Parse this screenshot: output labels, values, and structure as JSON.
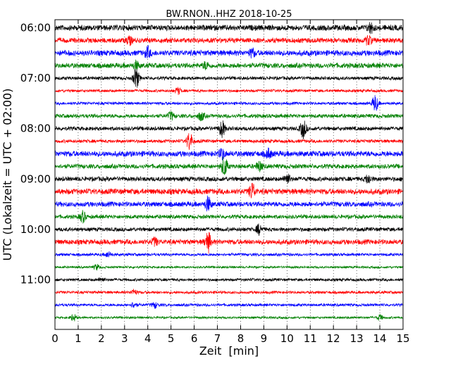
{
  "chart_data": {
    "type": "line",
    "title": "BW.RNON..HHZ 2018-10-25",
    "xlabel": "Zeit  [min]",
    "ylabel": "UTC (Lokalzeit = UTC + 02:00)",
    "xlim": [
      0,
      15
    ],
    "x_ticks": [
      0,
      1,
      2,
      3,
      4,
      5,
      6,
      7,
      8,
      9,
      10,
      11,
      12,
      13,
      14,
      15
    ],
    "x_tick_labels": [
      "0",
      "1",
      "2",
      "3",
      "4",
      "5",
      "6",
      "7",
      "8",
      "9",
      "10",
      "11",
      "12",
      "13",
      "14",
      "15"
    ],
    "y_ticks": [
      0,
      4,
      8,
      12,
      16,
      20
    ],
    "y_tick_labels": [
      "06:00",
      "07:00",
      "08:00",
      "09:00",
      "10:00",
      "11:00"
    ],
    "trace_count": 24,
    "trace_interval_min": 15,
    "grid": "vertical dotted at each minute",
    "colors": [
      "#000000",
      "#ff0000",
      "#0000ff",
      "#008000"
    ],
    "traces": [
      {
        "start": "06:00",
        "amplitude": 0.5,
        "events": [
          [
            13.6,
            0.9
          ]
        ]
      },
      {
        "start": "06:15",
        "amplitude": 0.45,
        "events": [
          [
            3.2,
            0.7
          ],
          [
            13.5,
            0.8
          ]
        ]
      },
      {
        "start": "06:30",
        "amplitude": 0.5,
        "events": [
          [
            4.0,
            0.9
          ],
          [
            8.5,
            0.7
          ]
        ]
      },
      {
        "start": "06:45",
        "amplitude": 0.45,
        "events": [
          [
            3.5,
            0.7
          ],
          [
            6.5,
            0.6
          ]
        ]
      },
      {
        "start": "07:00",
        "amplitude": 0.3,
        "events": [
          [
            3.5,
            1.9
          ]
        ]
      },
      {
        "start": "07:15",
        "amplitude": 0.25,
        "events": [
          [
            5.3,
            0.6
          ]
        ]
      },
      {
        "start": "07:30",
        "amplitude": 0.25,
        "events": [
          [
            13.8,
            1.6
          ]
        ]
      },
      {
        "start": "07:45",
        "amplitude": 0.35,
        "events": [
          [
            5.0,
            0.7
          ],
          [
            6.3,
            0.8
          ]
        ]
      },
      {
        "start": "08:00",
        "amplitude": 0.35,
        "events": [
          [
            7.2,
            1.5
          ],
          [
            10.7,
            1.7
          ]
        ]
      },
      {
        "start": "08:15",
        "amplitude": 0.3,
        "events": [
          [
            5.8,
            1.7
          ]
        ]
      },
      {
        "start": "08:30",
        "amplitude": 0.5,
        "events": [
          [
            7.2,
            0.9
          ],
          [
            9.2,
            0.8
          ]
        ]
      },
      {
        "start": "08:45",
        "amplitude": 0.4,
        "events": [
          [
            7.3,
            1.9
          ],
          [
            8.8,
            0.9
          ]
        ]
      },
      {
        "start": "09:00",
        "amplitude": 0.4,
        "events": [
          [
            10.0,
            1.0
          ],
          [
            13.5,
            0.8
          ]
        ]
      },
      {
        "start": "09:15",
        "amplitude": 0.5,
        "events": [
          [
            8.5,
            1.5
          ]
        ]
      },
      {
        "start": "09:30",
        "amplitude": 0.45,
        "events": [
          [
            6.6,
            1.3
          ]
        ]
      },
      {
        "start": "09:45",
        "amplitude": 0.35,
        "events": [
          [
            1.2,
            1.0
          ]
        ]
      },
      {
        "start": "10:00",
        "amplitude": 0.35,
        "events": [
          [
            8.8,
            0.9
          ]
        ]
      },
      {
        "start": "10:15",
        "amplitude": 0.45,
        "events": [
          [
            6.6,
            1.8
          ],
          [
            4.3,
            0.7
          ]
        ]
      },
      {
        "start": "10:30",
        "amplitude": 0.25,
        "events": [
          [
            2.3,
            0.5
          ]
        ]
      },
      {
        "start": "10:45",
        "amplitude": 0.2,
        "events": [
          [
            1.8,
            0.5
          ]
        ]
      },
      {
        "start": "11:00",
        "amplitude": 0.25,
        "events": [
          [
            2.0,
            0.4
          ]
        ]
      },
      {
        "start": "11:15",
        "amplitude": 0.25,
        "events": [
          [
            3.4,
            0.5
          ]
        ]
      },
      {
        "start": "11:30",
        "amplitude": 0.25,
        "events": [
          [
            3.4,
            0.5
          ],
          [
            4.3,
            0.5
          ]
        ]
      },
      {
        "start": "11:45",
        "amplitude": 0.2,
        "events": [
          [
            0.8,
            0.6
          ],
          [
            14.0,
            0.5
          ]
        ]
      }
    ]
  }
}
